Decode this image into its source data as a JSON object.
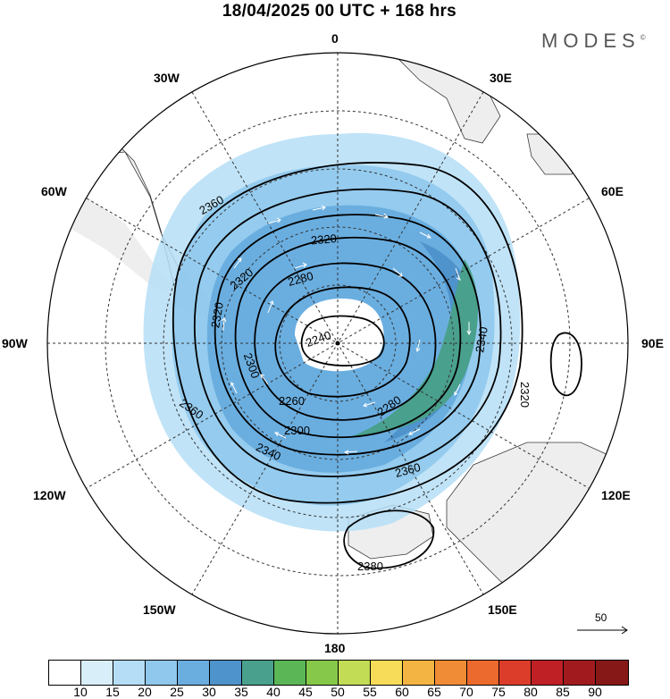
{
  "title": "18/04/2025  00 UTC  + 168 hrs",
  "brand": "MODES",
  "brand_mark": "©",
  "longitude_labels": {
    "lon_0": "0",
    "lon_30e": "30E",
    "lon_60e": "60E",
    "lon_90e": "90E",
    "lon_120e": "120E",
    "lon_150e": "150E",
    "lon_180": "180",
    "lon_150w": "150W",
    "lon_120w": "120W",
    "lon_90w": "90W",
    "lon_60w": "60W",
    "lon_30w": "30W"
  },
  "contour_labels": {
    "c2360_a": "2360",
    "c2320_a": "2320",
    "c2320_b": "2320",
    "c2320_c": "2320",
    "c2280_a": "2280",
    "c2240": "2240",
    "c2300_a": "2300",
    "c2260": "2260",
    "c2280_b": "2280",
    "c2340_a": "2340",
    "c2360_b": "2360",
    "c2340_b": "2340",
    "c2300_b": "2300",
    "c2360_c": "2360",
    "c2380": "2380",
    "c2320_d": "2320"
  },
  "reference_vector": {
    "value": "50"
  },
  "colorbar": {
    "tick_labels": [
      "10",
      "15",
      "20",
      "25",
      "30",
      "35",
      "40",
      "45",
      "50",
      "55",
      "60",
      "65",
      "70",
      "75",
      "80",
      "85",
      "90"
    ],
    "colors": [
      "#ffffff",
      "#d8effa",
      "#b5def6",
      "#8fc8ec",
      "#6aaee0",
      "#4f93cc",
      "#49a08c",
      "#5bb756",
      "#86c94a",
      "#c2dc56",
      "#f6dc58",
      "#f3b443",
      "#f08c35",
      "#ec6a2d",
      "#dc3d2b",
      "#bf2026",
      "#a11b1e",
      "#861818"
    ]
  },
  "map_colors": {
    "land": "#eeeeee",
    "coast": "#3a3a3a",
    "jet_20": "#b5def6",
    "jet_25": "#8fc8ec",
    "jet_30": "#6aaee0",
    "jet_35": "#4f93cc",
    "jet_40": "#49a08c"
  }
}
